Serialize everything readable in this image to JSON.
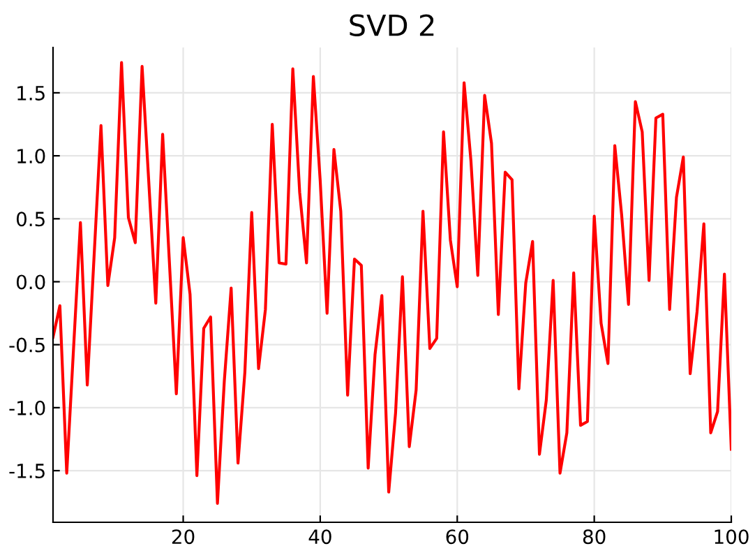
{
  "chart_data": {
    "type": "line",
    "title": "SVD 2",
    "x": [
      1,
      2,
      3,
      5,
      6,
      8,
      9,
      10,
      11,
      12,
      13,
      14,
      16,
      17,
      19,
      20,
      21,
      22,
      23,
      24,
      25,
      26,
      27,
      28,
      29,
      30,
      31,
      32,
      33,
      34,
      35,
      36,
      37,
      38,
      39,
      40,
      41,
      42,
      43,
      44,
      45,
      46,
      47,
      48,
      49,
      50,
      51,
      52,
      53,
      54,
      55,
      56,
      57,
      58,
      59,
      60,
      61,
      62,
      63,
      64,
      65,
      66,
      67,
      68,
      69,
      70,
      71,
      72,
      73,
      74,
      75,
      76,
      77,
      78,
      79,
      80,
      81,
      82,
      83,
      84,
      85,
      86,
      87,
      88,
      89,
      90,
      91,
      92,
      93,
      94,
      95,
      96,
      97,
      98,
      99,
      100
    ],
    "series": [
      {
        "color": "#ff0000",
        "values": [
          -0.44,
          -0.19,
          -1.52,
          0.47,
          -0.82,
          1.24,
          -0.03,
          0.35,
          1.74,
          0.51,
          0.31,
          1.71,
          -0.17,
          1.17,
          -0.89,
          0.35,
          -0.1,
          -1.54,
          -0.37,
          -0.28,
          -1.76,
          -0.79,
          -0.05,
          -1.44,
          -0.72,
          0.55,
          -0.69,
          -0.22,
          1.25,
          0.15,
          0.14,
          1.69,
          0.71,
          0.15,
          1.63,
          0.8,
          -0.25,
          1.05,
          0.56,
          -0.9,
          0.18,
          0.13,
          -1.48,
          -0.58,
          -0.11,
          -1.67,
          -1.04,
          0.04,
          -1.31,
          -0.86,
          0.56,
          -0.53,
          -0.45,
          1.19,
          0.33,
          -0.04,
          1.58,
          0.96,
          0.05,
          1.48,
          1.1,
          -0.26,
          0.87,
          0.81,
          -0.85,
          -0.01,
          0.32,
          -1.37,
          -0.94,
          0.01,
          -1.52,
          -1.2,
          0.07,
          -1.14,
          -1.11,
          0.52,
          -0.33,
          -0.65,
          1.08,
          0.53,
          -0.18,
          1.43,
          1.19,
          0.01,
          1.3,
          1.33,
          -0.22,
          0.67,
          0.99,
          -0.73,
          -0.24,
          0.46,
          -1.2,
          -1.03,
          0.06,
          -1.33
        ]
      }
    ],
    "xlim": [
      1,
      100
    ],
    "xticks": [
      20,
      40,
      60,
      80,
      100
    ],
    "ylim": [
      -1.91,
      1.86
    ],
    "yticks": [
      {
        "value": -1.5,
        "label": "-1.5"
      },
      {
        "value": -1.0,
        "label": "-1.0"
      },
      {
        "value": -0.5,
        "label": "-0.5"
      },
      {
        "value": 0.0,
        "label": "0.0"
      },
      {
        "value": 0.5,
        "label": "0.5"
      },
      {
        "value": 1.0,
        "label": "1.0"
      },
      {
        "value": 1.5,
        "label": "1.5"
      }
    ],
    "grid": true,
    "legend": false,
    "marker": "none",
    "line_style": "solid"
  }
}
